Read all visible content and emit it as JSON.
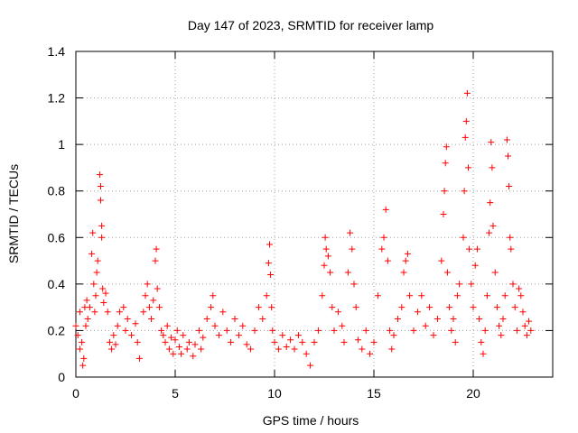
{
  "chart_data": {
    "type": "scatter",
    "title": "Day 147 of 2023, SRMTID for receiver lamp",
    "xlabel": "GPS time / hours",
    "ylabel": "SRMTID / TECUs",
    "xlim": [
      0,
      24
    ],
    "ylim": [
      0,
      1.4
    ],
    "xticks": [
      0,
      5,
      10,
      15,
      20
    ],
    "xtick_labels": [
      "0",
      "5",
      "10",
      "15",
      "20"
    ],
    "yticks": [
      0,
      0.2,
      0.4,
      0.6,
      0.8,
      1,
      1.2,
      1.4
    ],
    "ytick_labels": [
      "0",
      "0.2",
      "0.4",
      "0.6",
      "0.8",
      "1",
      "1.2",
      "1.4"
    ],
    "grid": true,
    "marker": "+",
    "color": "#ff0000",
    "series": [
      {
        "name": "SRMTID",
        "points": [
          [
            0.0,
            0.22
          ],
          [
            0.1,
            0.18
          ],
          [
            0.2,
            0.28
          ],
          [
            0.2,
            0.12
          ],
          [
            0.3,
            0.15
          ],
          [
            0.35,
            0.05
          ],
          [
            0.4,
            0.08
          ],
          [
            0.45,
            0.3
          ],
          [
            0.5,
            0.22
          ],
          [
            0.55,
            0.33
          ],
          [
            0.6,
            0.25
          ],
          [
            0.7,
            0.3
          ],
          [
            0.8,
            0.53
          ],
          [
            0.85,
            0.62
          ],
          [
            0.9,
            0.4
          ],
          [
            0.95,
            0.28
          ],
          [
            1.0,
            0.35
          ],
          [
            1.05,
            0.45
          ],
          [
            1.1,
            0.5
          ],
          [
            1.2,
            0.87
          ],
          [
            1.25,
            0.82
          ],
          [
            1.25,
            0.76
          ],
          [
            1.3,
            0.65
          ],
          [
            1.3,
            0.6
          ],
          [
            1.35,
            0.38
          ],
          [
            1.4,
            0.32
          ],
          [
            1.5,
            0.36
          ],
          [
            1.6,
            0.28
          ],
          [
            1.7,
            0.15
          ],
          [
            1.8,
            0.12
          ],
          [
            1.9,
            0.18
          ],
          [
            2.0,
            0.14
          ],
          [
            2.1,
            0.22
          ],
          [
            2.2,
            0.28
          ],
          [
            2.4,
            0.3
          ],
          [
            2.5,
            0.2
          ],
          [
            2.6,
            0.25
          ],
          [
            2.8,
            0.18
          ],
          [
            3.0,
            0.23
          ],
          [
            3.1,
            0.15
          ],
          [
            3.2,
            0.08
          ],
          [
            3.4,
            0.28
          ],
          [
            3.5,
            0.35
          ],
          [
            3.6,
            0.4
          ],
          [
            3.7,
            0.3
          ],
          [
            3.8,
            0.25
          ],
          [
            3.9,
            0.33
          ],
          [
            4.0,
            0.5
          ],
          [
            4.05,
            0.55
          ],
          [
            4.1,
            0.38
          ],
          [
            4.2,
            0.3
          ],
          [
            4.3,
            0.2
          ],
          [
            4.4,
            0.18
          ],
          [
            4.5,
            0.15
          ],
          [
            4.6,
            0.22
          ],
          [
            4.7,
            0.12
          ],
          [
            4.8,
            0.17
          ],
          [
            4.9,
            0.1
          ],
          [
            5.0,
            0.16
          ],
          [
            5.1,
            0.2
          ],
          [
            5.2,
            0.13
          ],
          [
            5.3,
            0.1
          ],
          [
            5.4,
            0.18
          ],
          [
            5.6,
            0.12
          ],
          [
            5.7,
            0.15
          ],
          [
            5.9,
            0.09
          ],
          [
            6.0,
            0.14
          ],
          [
            6.2,
            0.2
          ],
          [
            6.3,
            0.12
          ],
          [
            6.4,
            0.17
          ],
          [
            6.6,
            0.25
          ],
          [
            6.8,
            0.3
          ],
          [
            6.9,
            0.35
          ],
          [
            7.0,
            0.22
          ],
          [
            7.2,
            0.18
          ],
          [
            7.4,
            0.28
          ],
          [
            7.6,
            0.2
          ],
          [
            7.8,
            0.15
          ],
          [
            8.0,
            0.25
          ],
          [
            8.2,
            0.18
          ],
          [
            8.4,
            0.22
          ],
          [
            8.6,
            0.14
          ],
          [
            8.8,
            0.12
          ],
          [
            9.0,
            0.2
          ],
          [
            9.2,
            0.3
          ],
          [
            9.4,
            0.25
          ],
          [
            9.6,
            0.35
          ],
          [
            9.7,
            0.49
          ],
          [
            9.75,
            0.57
          ],
          [
            9.8,
            0.44
          ],
          [
            9.85,
            0.3
          ],
          [
            9.9,
            0.2
          ],
          [
            10.0,
            0.15
          ],
          [
            10.2,
            0.12
          ],
          [
            10.4,
            0.18
          ],
          [
            10.6,
            0.13
          ],
          [
            10.8,
            0.16
          ],
          [
            11.0,
            0.12
          ],
          [
            11.2,
            0.18
          ],
          [
            11.4,
            0.15
          ],
          [
            11.6,
            0.1
          ],
          [
            11.8,
            0.05
          ],
          [
            12.0,
            0.15
          ],
          [
            12.2,
            0.2
          ],
          [
            12.4,
            0.35
          ],
          [
            12.5,
            0.48
          ],
          [
            12.55,
            0.6
          ],
          [
            12.6,
            0.55
          ],
          [
            12.7,
            0.52
          ],
          [
            12.8,
            0.45
          ],
          [
            12.9,
            0.3
          ],
          [
            13.0,
            0.2
          ],
          [
            13.2,
            0.28
          ],
          [
            13.4,
            0.22
          ],
          [
            13.5,
            0.15
          ],
          [
            13.7,
            0.45
          ],
          [
            13.8,
            0.62
          ],
          [
            13.9,
            0.55
          ],
          [
            14.0,
            0.4
          ],
          [
            14.1,
            0.3
          ],
          [
            14.2,
            0.16
          ],
          [
            14.4,
            0.12
          ],
          [
            14.6,
            0.2
          ],
          [
            14.8,
            0.1
          ],
          [
            15.0,
            0.15
          ],
          [
            15.2,
            0.35
          ],
          [
            15.4,
            0.55
          ],
          [
            15.5,
            0.6
          ],
          [
            15.6,
            0.72
          ],
          [
            15.7,
            0.5
          ],
          [
            15.8,
            0.2
          ],
          [
            15.9,
            0.12
          ],
          [
            16.0,
            0.18
          ],
          [
            16.2,
            0.25
          ],
          [
            16.4,
            0.3
          ],
          [
            16.5,
            0.45
          ],
          [
            16.6,
            0.5
          ],
          [
            16.7,
            0.53
          ],
          [
            16.8,
            0.35
          ],
          [
            17.0,
            0.2
          ],
          [
            17.2,
            0.28
          ],
          [
            17.4,
            0.35
          ],
          [
            17.6,
            0.22
          ],
          [
            17.8,
            0.3
          ],
          [
            18.0,
            0.18
          ],
          [
            18.2,
            0.25
          ],
          [
            18.4,
            0.5
          ],
          [
            18.5,
            0.7
          ],
          [
            18.55,
            0.8
          ],
          [
            18.6,
            0.92
          ],
          [
            18.65,
            0.99
          ],
          [
            18.7,
            0.45
          ],
          [
            18.8,
            0.3
          ],
          [
            18.9,
            0.2
          ],
          [
            19.0,
            0.25
          ],
          [
            19.1,
            0.15
          ],
          [
            19.2,
            0.35
          ],
          [
            19.3,
            0.4
          ],
          [
            19.5,
            0.6
          ],
          [
            19.55,
            0.8
          ],
          [
            19.6,
            1.03
          ],
          [
            19.65,
            1.1
          ],
          [
            19.7,
            1.22
          ],
          [
            19.75,
            0.9
          ],
          [
            19.8,
            0.55
          ],
          [
            19.9,
            0.4
          ],
          [
            20.0,
            0.3
          ],
          [
            20.1,
            0.48
          ],
          [
            20.2,
            0.55
          ],
          [
            20.3,
            0.25
          ],
          [
            20.4,
            0.15
          ],
          [
            20.5,
            0.1
          ],
          [
            20.6,
            0.2
          ],
          [
            20.7,
            0.35
          ],
          [
            20.8,
            0.62
          ],
          [
            20.85,
            0.75
          ],
          [
            20.9,
            1.01
          ],
          [
            20.95,
            0.9
          ],
          [
            21.0,
            0.65
          ],
          [
            21.1,
            0.45
          ],
          [
            21.2,
            0.3
          ],
          [
            21.3,
            0.22
          ],
          [
            21.4,
            0.18
          ],
          [
            21.5,
            0.25
          ],
          [
            21.6,
            0.35
          ],
          [
            21.7,
            1.02
          ],
          [
            21.75,
            0.95
          ],
          [
            21.8,
            0.82
          ],
          [
            21.85,
            0.6
          ],
          [
            21.9,
            0.55
          ],
          [
            22.0,
            0.4
          ],
          [
            22.1,
            0.3
          ],
          [
            22.2,
            0.2
          ],
          [
            22.3,
            0.38
          ],
          [
            22.4,
            0.35
          ],
          [
            22.5,
            0.28
          ],
          [
            22.6,
            0.22
          ],
          [
            22.7,
            0.18
          ],
          [
            22.8,
            0.24
          ],
          [
            22.9,
            0.2
          ]
        ]
      }
    ]
  }
}
